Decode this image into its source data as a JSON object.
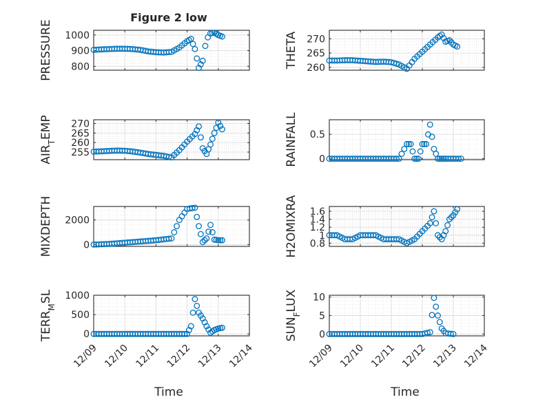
{
  "figure_title": "Figure 2 low",
  "colors": {
    "marker": "#0072BD",
    "axis": "#262626",
    "grid": "#dcdcdc",
    "background": "#ffffff"
  },
  "time_axis": {
    "ticks": [
      "12/09",
      "12/10",
      "12/11",
      "12/12",
      "12/13",
      "12/14"
    ],
    "xlabel": "Time",
    "xlim": [
      "12/09",
      "12/14"
    ]
  },
  "chart_data": [
    {
      "type": "scatter",
      "marker": "circle",
      "grid": true,
      "minor_grid": true,
      "title": "Figure 2 low",
      "ylabel": "PRESSURE",
      "xlabel": "",
      "ylim": [
        775,
        1030
      ],
      "yticks": [
        800,
        900,
        1000
      ],
      "tick_labels": [
        "800",
        "900",
        "1000"
      ],
      "x": [
        "12/09 00:00",
        "12/09 06:00",
        "12/09 12:00",
        "12/09 18:00",
        "12/10 00:00",
        "12/10 06:00",
        "12/10 12:00",
        "12/10 18:00",
        "12/11 00:00",
        "12/11 06:00",
        "12/11 12:00",
        "12/11 18:00",
        "12/12 00:00",
        "12/12 03:00",
        "12/12 06:00",
        "12/12 09:00",
        "12/12 12:00",
        "12/12 14:00",
        "12/12 16:00",
        "12/12 18:00",
        "12/12 21:00",
        "12/13 00:00",
        "12/13 03:00"
      ],
      "y": [
        905,
        908,
        910,
        912,
        912,
        910,
        905,
        895,
        890,
        888,
        892,
        920,
        960,
        975,
        910,
        790,
        835,
        930,
        985,
        1010,
        1015,
        1000,
        990
      ]
    },
    {
      "type": "scatter",
      "marker": "circle",
      "grid": true,
      "minor_grid": true,
      "ylabel": "THETA",
      "ylim": [
        259,
        273
      ],
      "yticks": [
        260,
        265,
        270
      ],
      "tick_labels": [
        "260",
        "265",
        "270"
      ],
      "x": [
        "12/09 00:00",
        "12/09 06:00",
        "12/09 12:00",
        "12/09 18:00",
        "12/10 00:00",
        "12/10 06:00",
        "12/10 12:00",
        "12/10 18:00",
        "12/11 00:00",
        "12/11 06:00",
        "12/11 12:00",
        "12/11 18:00",
        "12/12 00:00",
        "12/12 06:00",
        "12/12 12:00",
        "12/12 15:00",
        "12/12 18:00",
        "12/12 21:00",
        "12/13 00:00",
        "12/13 03:00"
      ],
      "y": [
        262.4,
        262.4,
        262.5,
        262.5,
        262.3,
        262.1,
        261.9,
        262,
        261.8,
        261,
        259.5,
        263,
        265.5,
        268,
        270.5,
        271.5,
        269,
        269.5,
        268,
        267.3
      ]
    },
    {
      "type": "scatter",
      "marker": "circle",
      "grid": true,
      "minor_grid": true,
      "ylabel": "AIR_TEMP",
      "ylim": [
        251,
        272
      ],
      "yticks": [
        255,
        260,
        265,
        270
      ],
      "tick_labels": [
        "255",
        "260",
        "265",
        "270"
      ],
      "x": [
        "12/09 00:00",
        "12/09 06:00",
        "12/09 12:00",
        "12/09 18:00",
        "12/10 00:00",
        "12/10 06:00",
        "12/10 12:00",
        "12/10 18:00",
        "12/11 00:00",
        "12/11 06:00",
        "12/11 12:00",
        "12/11 18:00",
        "12/12 00:00",
        "12/12 06:00",
        "12/12 09:00",
        "12/12 12:00",
        "12/12 15:00",
        "12/12 18:00",
        "12/12 21:00",
        "12/13 00:00",
        "12/13 03:00"
      ],
      "y": [
        255.2,
        255.4,
        255.6,
        255.8,
        255.7,
        255.3,
        254.7,
        254,
        253.5,
        253,
        252.2,
        256,
        260.5,
        264.5,
        268.5,
        257,
        254,
        259,
        265,
        270.5,
        267
      ]
    },
    {
      "type": "scatter",
      "marker": "circle",
      "grid": true,
      "minor_grid": true,
      "ylabel": "RAINFALL",
      "ylim": [
        -0.02,
        0.8
      ],
      "yticks": [
        0,
        0.5
      ],
      "tick_labels": [
        "0",
        "0.5"
      ],
      "x": [
        "12/09 00:00",
        "12/09 12:00",
        "12/10 00:00",
        "12/10 12:00",
        "12/11 00:00",
        "12/11 06:00",
        "12/11 12:00",
        "12/11 15:00",
        "12/11 18:00",
        "12/11 21:00",
        "12/12 00:00",
        "12/12 03:00",
        "12/12 06:00",
        "12/12 09:00",
        "12/12 12:00",
        "12/12 15:00",
        "12/12 18:00",
        "12/13 00:00",
        "12/13 06:00"
      ],
      "y": [
        0,
        0,
        0,
        0,
        0,
        0,
        0.3,
        0.3,
        0,
        0,
        0.3,
        0.3,
        0.7,
        0.2,
        0,
        0,
        0,
        0,
        0
      ]
    },
    {
      "type": "scatter",
      "marker": "circle",
      "grid": true,
      "minor_grid": true,
      "ylabel": "MIXDEPTH",
      "ylim": [
        -150,
        3100
      ],
      "yticks": [
        0,
        2000
      ],
      "tick_labels": [
        "0",
        "2000"
      ],
      "x": [
        "12/09 00:00",
        "12/09 12:00",
        "12/10 00:00",
        "12/10 12:00",
        "12/11 00:00",
        "12/11 12:00",
        "12/11 18:00",
        "12/12 00:00",
        "12/12 06:00",
        "12/12 09:00",
        "12/12 12:00",
        "12/12 15:00",
        "12/12 18:00",
        "12/12 21:00",
        "12/13 00:00",
        "12/13 03:00"
      ],
      "y": [
        0,
        50,
        150,
        250,
        350,
        500,
        2000,
        2900,
        3000,
        1500,
        200,
        500,
        1600,
        400,
        350,
        350
      ]
    },
    {
      "type": "scatter",
      "marker": "circle",
      "grid": true,
      "minor_grid": true,
      "ylabel": "H2OMIXRA",
      "ylim": [
        0.72,
        1.72
      ],
      "yticks": [
        0.8,
        1,
        1.2,
        1.4,
        1.6
      ],
      "tick_labels": [
        "0.8",
        "1",
        "1.2",
        "1.4",
        "1.6"
      ],
      "x": [
        "12/09 00:00",
        "12/09 06:00",
        "12/09 12:00",
        "12/09 18:00",
        "12/10 00:00",
        "12/10 06:00",
        "12/10 12:00",
        "12/10 18:00",
        "12/11 00:00",
        "12/11 06:00",
        "12/11 12:00",
        "12/11 18:00",
        "12/12 00:00",
        "12/12 06:00",
        "12/12 09:00",
        "12/12 12:00",
        "12/12 15:00",
        "12/12 18:00",
        "12/12 21:00",
        "12/13 00:00",
        "12/13 03:00"
      ],
      "y": [
        1,
        1,
        0.9,
        0.9,
        1,
        1,
        1,
        0.9,
        0.9,
        0.9,
        0.8,
        0.9,
        1.1,
        1.3,
        1.6,
        1,
        0.9,
        1.1,
        1.4,
        1.5,
        1.65
      ]
    },
    {
      "type": "scatter",
      "marker": "circle",
      "grid": true,
      "minor_grid": true,
      "ylabel": "TERR_MSL",
      "ylim": [
        -50,
        1000
      ],
      "yticks": [
        0,
        500,
        1000
      ],
      "tick_labels": [
        "0",
        "500",
        "1000"
      ],
      "x": [
        "12/09 00:00",
        "12/09 12:00",
        "12/10 00:00",
        "12/10 12:00",
        "12/11 00:00",
        "12/11 12:00",
        "12/12 00:00",
        "12/12 03:00",
        "12/12 06:00",
        "12/12 09:00",
        "12/12 12:00",
        "12/12 15:00",
        "12/12 18:00",
        "12/12 21:00",
        "12/13 00:00",
        "12/13 03:00"
      ],
      "y": [
        0,
        0,
        0,
        0,
        0,
        0,
        0,
        200,
        900,
        550,
        400,
        200,
        30,
        100,
        140,
        160
      ]
    },
    {
      "type": "scatter",
      "marker": "circle",
      "grid": true,
      "minor_grid": true,
      "ylabel": "SUN_FLUX",
      "ylim": [
        -0.5,
        10.5
      ],
      "yticks": [
        0,
        5,
        10
      ],
      "tick_labels": [
        "0",
        "5",
        "10"
      ],
      "x": [
        "12/09 00:00",
        "12/09 12:00",
        "12/10 00:00",
        "12/10 12:00",
        "12/11 00:00",
        "12/11 12:00",
        "12/12 00:00",
        "12/12 06:00",
        "12/12 09:00",
        "12/12 12:00",
        "12/12 15:00",
        "12/12 18:00",
        "12/13 00:00"
      ],
      "y": [
        0,
        0,
        0,
        0,
        0,
        0,
        0,
        0.5,
        9.8,
        5,
        1.5,
        0.2,
        0
      ]
    }
  ]
}
